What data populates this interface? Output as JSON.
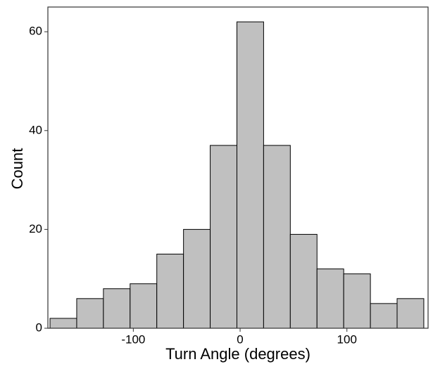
{
  "chart_data": {
    "type": "histogram",
    "x_label": "Turn Angle (degrees)",
    "y_label": "Count",
    "bins": [
      -178,
      -153,
      -128,
      -103,
      -78,
      -53,
      -28,
      -3,
      22,
      47,
      72,
      97,
      122,
      147,
      172
    ],
    "values": [
      2,
      6,
      8,
      9,
      15,
      20,
      37,
      62,
      37,
      19,
      12,
      11,
      5,
      6
    ],
    "color": "#c0c0c0",
    "xlim": [
      -180,
      176
    ],
    "xticks": [
      -100,
      0,
      100
    ],
    "ylim": [
      0,
      65
    ],
    "yticks": [
      0,
      20,
      40,
      60
    ]
  }
}
